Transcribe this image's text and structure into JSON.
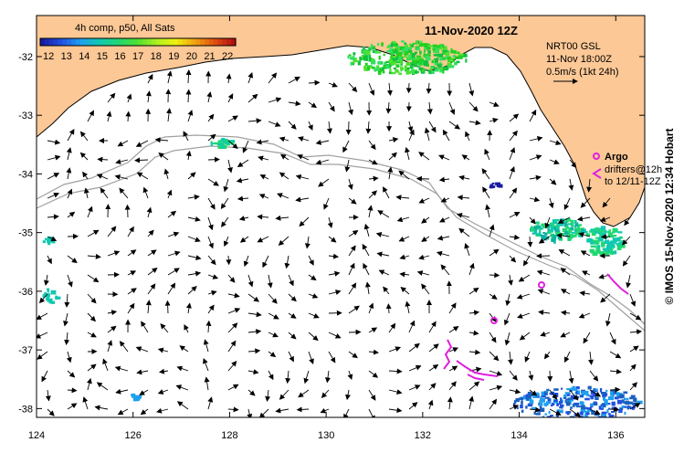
{
  "title": "11-Nov-2020 12Z",
  "colorbar": {
    "label": "4h comp, p50, All Sats",
    "ticks": [
      "12",
      "13",
      "14",
      "15",
      "16",
      "17",
      "18",
      "19",
      "20",
      "21",
      "22"
    ],
    "colors": [
      "#1a1aa0",
      "#2050e0",
      "#1ea0f0",
      "#10c8b0",
      "#20d870",
      "#50e030",
      "#b0f020",
      "#f0f010",
      "#f0a010",
      "#e05010",
      "#b01010"
    ]
  },
  "info": {
    "line1": "NRT00 GSL",
    "line2": "11-Nov 18:00Z",
    "line3": "0.5m/s (1kt 24h)"
  },
  "legend": {
    "argo_label": "Argo",
    "drifter_line1": "drifters@12h",
    "drifter_line2": "to 12/11-12Z"
  },
  "credit": "© IMOS 15-Nov-2020 12:34 Hobart",
  "axes": {
    "x_ticks": [
      "124",
      "126",
      "128",
      "130",
      "132",
      "134",
      "136"
    ],
    "y_ticks": [
      "-32",
      "-33",
      "-34",
      "-35",
      "-36",
      "-37",
      "-38"
    ],
    "xlim": [
      124,
      136.6
    ],
    "ylim": [
      -38.15,
      -31.3
    ]
  },
  "colors": {
    "land": "#fcc896",
    "argo": "#e020e0",
    "contour": "#a0a0a0"
  }
}
